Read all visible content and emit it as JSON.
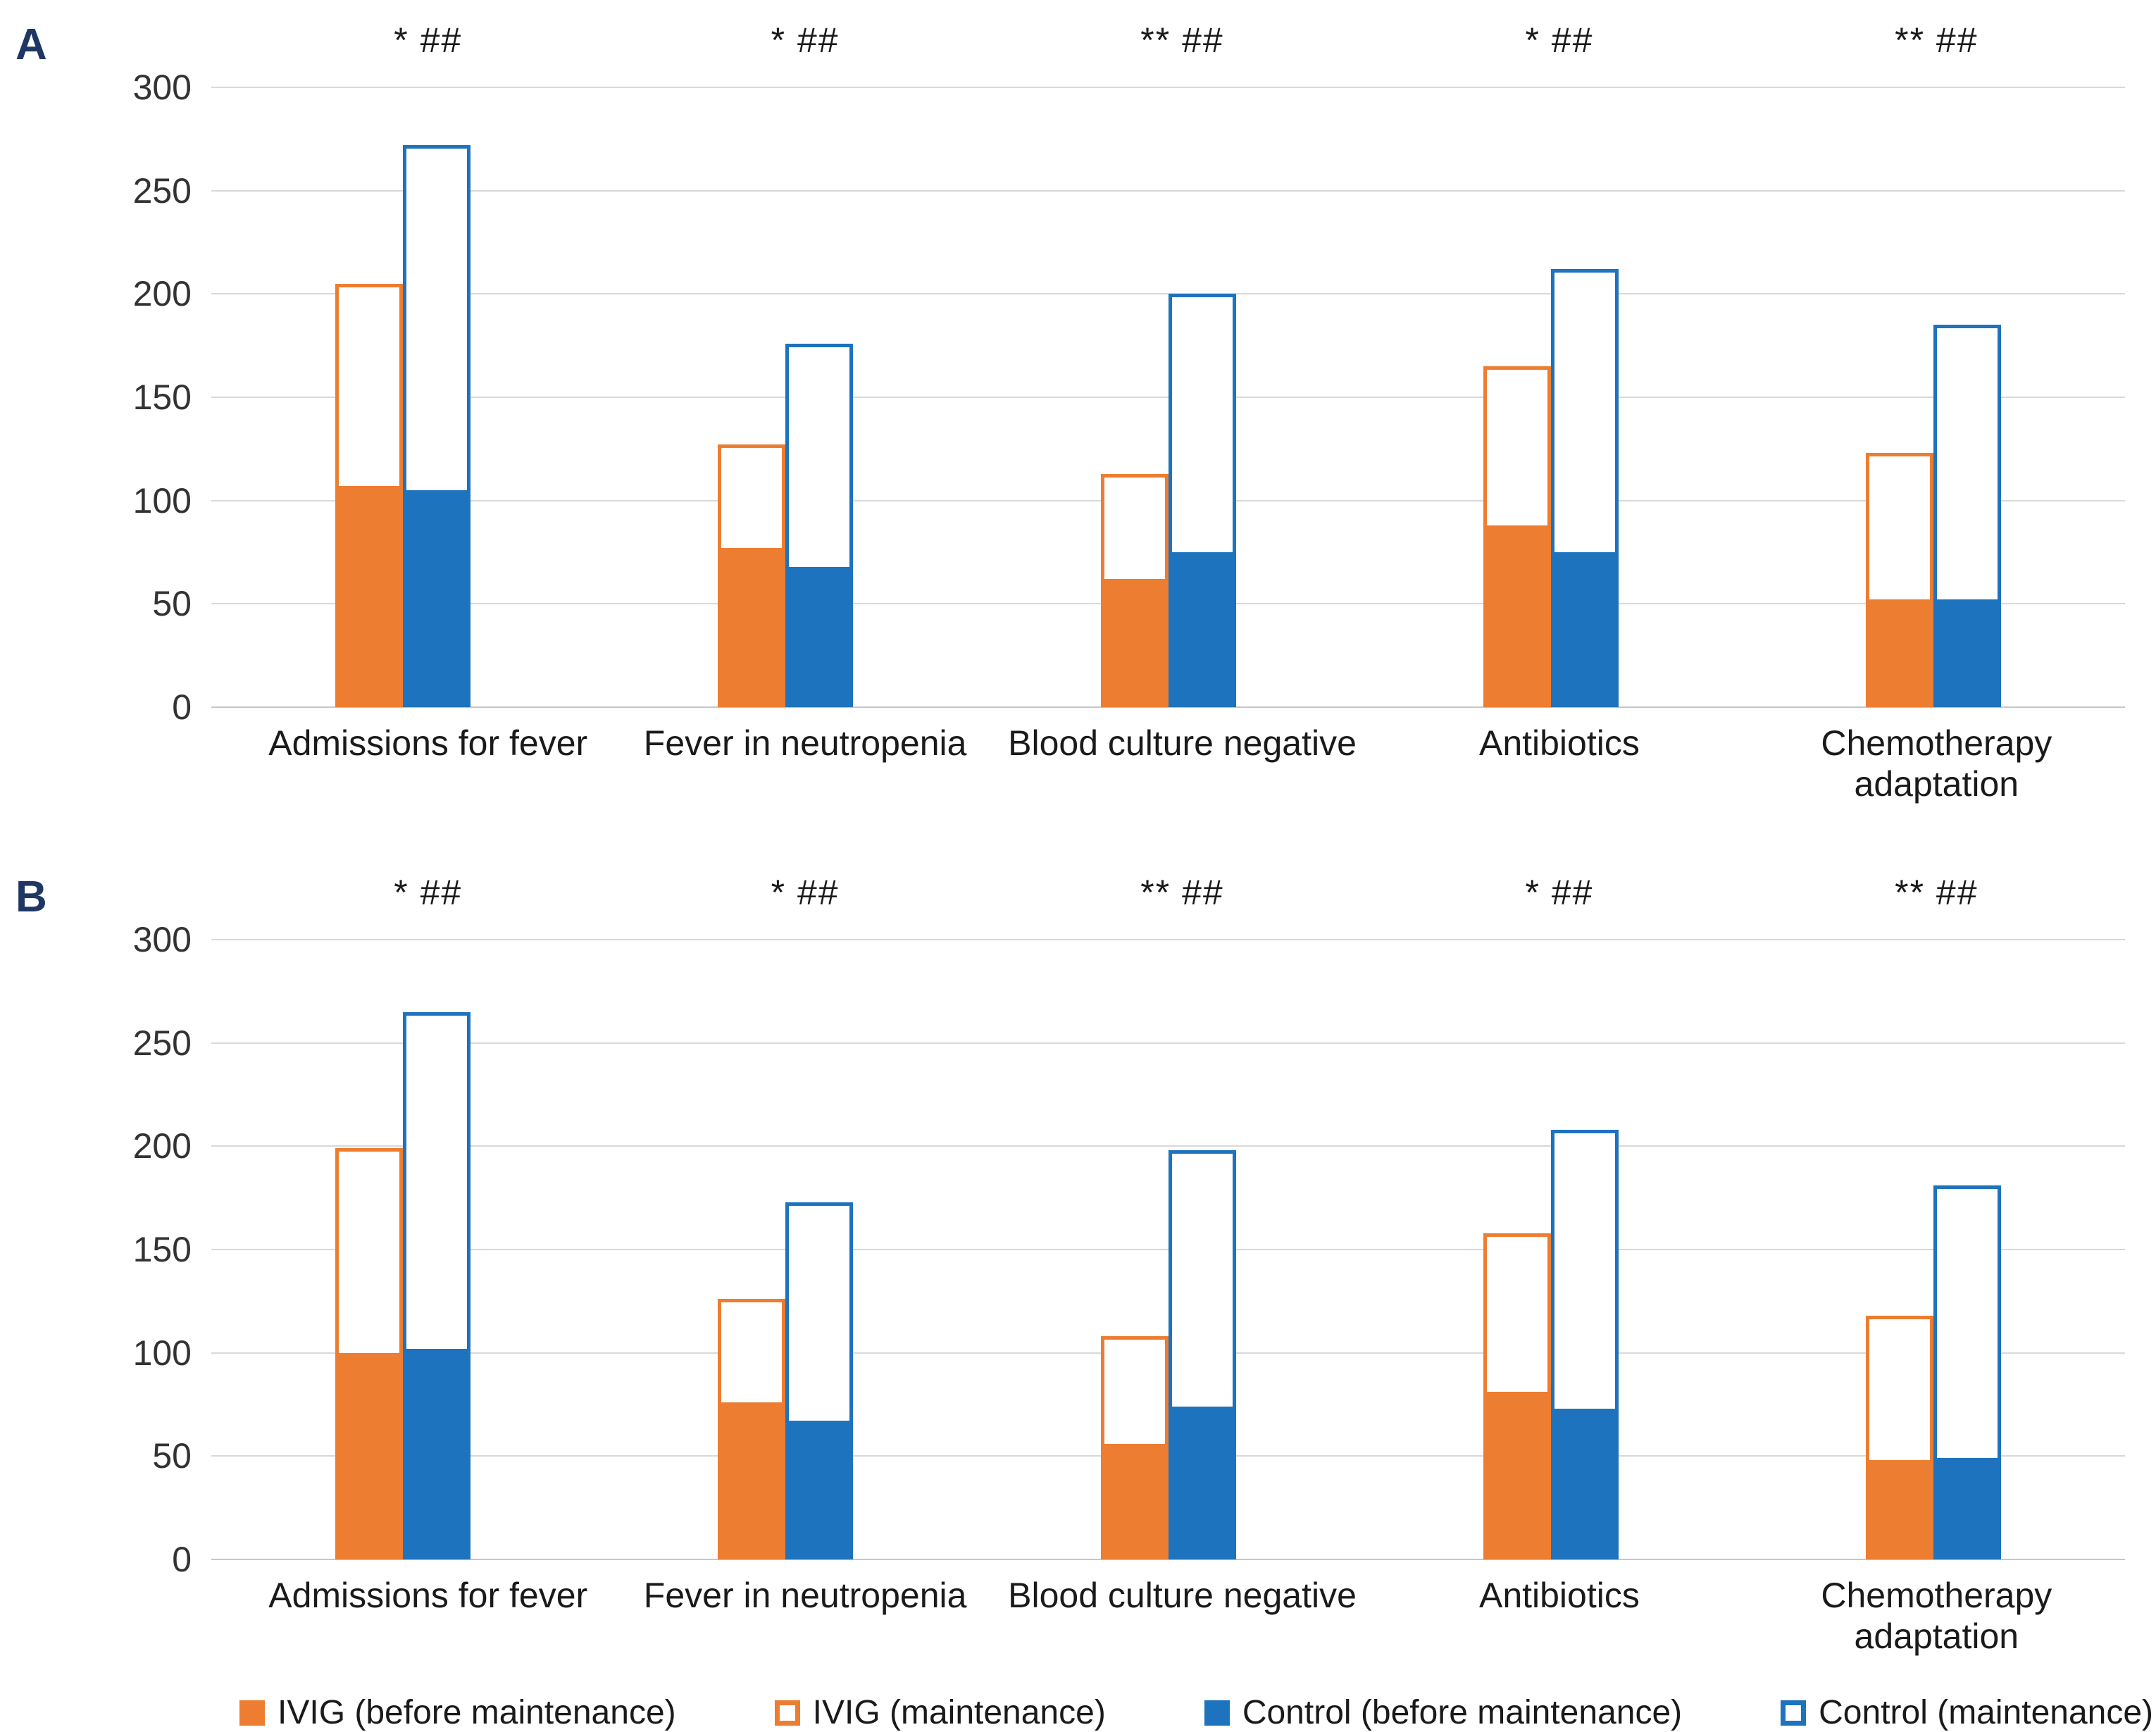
{
  "chart_data": {
    "type": "bar",
    "title": "",
    "xlabel": "",
    "ylabel": "",
    "ylim": [
      0,
      300
    ],
    "ytick_step": 50,
    "grid": true,
    "legend_position": "bottom",
    "categories": [
      "Admissions for fever",
      "Fever in neutropenia",
      "Blood culture negative",
      "Antibiotics",
      "Chemotherapy adaptation"
    ],
    "bar_pairs": [
      {
        "name": "bar-ivig",
        "fill": 0,
        "outline": 1
      },
      {
        "name": "bar-control",
        "fill": 2,
        "outline": 3
      }
    ],
    "panels": [
      {
        "label": "A",
        "significance": [
          "* ##",
          "* ##",
          "** ##",
          "* ##",
          "** ##"
        ],
        "series": [
          {
            "name": "IVIG (before maintenance)",
            "color": "#ED7D31",
            "style": "filled",
            "values": [
              107,
              77,
              62,
              88,
              52
            ]
          },
          {
            "name": "IVIG (maintenance)",
            "color": "#ED7D31",
            "style": "outline",
            "values": [
              205,
              127,
              113,
              165,
              123
            ]
          },
          {
            "name": "Control (before maintenance)",
            "color": "#1E73BE",
            "style": "filled",
            "values": [
              105,
              68,
              75,
              75,
              52
            ]
          },
          {
            "name": "Control (maintenance)",
            "color": "#1E73BE",
            "style": "outline",
            "values": [
              272,
              176,
              200,
              212,
              185
            ]
          }
        ]
      },
      {
        "label": "B",
        "significance": [
          "* ##",
          "* ##",
          "** ##",
          "* ##",
          "** ##"
        ],
        "series": [
          {
            "name": "IVIG (before maintenance)",
            "color": "#ED7D31",
            "style": "filled",
            "values": [
              100,
              76,
              56,
              81,
              48
            ]
          },
          {
            "name": "IVIG (maintenance)",
            "color": "#ED7D31",
            "style": "outline",
            "values": [
              199,
              126,
              108,
              158,
              118
            ]
          },
          {
            "name": "Control (before maintenance)",
            "color": "#1E73BE",
            "style": "filled",
            "values": [
              102,
              67,
              74,
              73,
              49
            ]
          },
          {
            "name": "Control (maintenance)",
            "color": "#1E73BE",
            "style": "outline",
            "values": [
              265,
              173,
              198,
              208,
              181
            ]
          }
        ]
      }
    ],
    "legend": [
      {
        "name": "IVIG (before maintenance)",
        "color": "#ED7D31",
        "style": "filled"
      },
      {
        "name": "IVIG (maintenance)",
        "color": "#ED7D31",
        "style": "outline"
      },
      {
        "name": "Control (before maintenance)",
        "color": "#1E73BE",
        "style": "filled"
      },
      {
        "name": "Control (maintenance)",
        "color": "#1E73BE",
        "style": "outline"
      }
    ],
    "colors": {
      "ivig_orange": "#ED7D31",
      "control_blue": "#1E73BE",
      "panel_label_navy": "#1F3763",
      "gridline_gray": "#D9D9D9"
    }
  }
}
